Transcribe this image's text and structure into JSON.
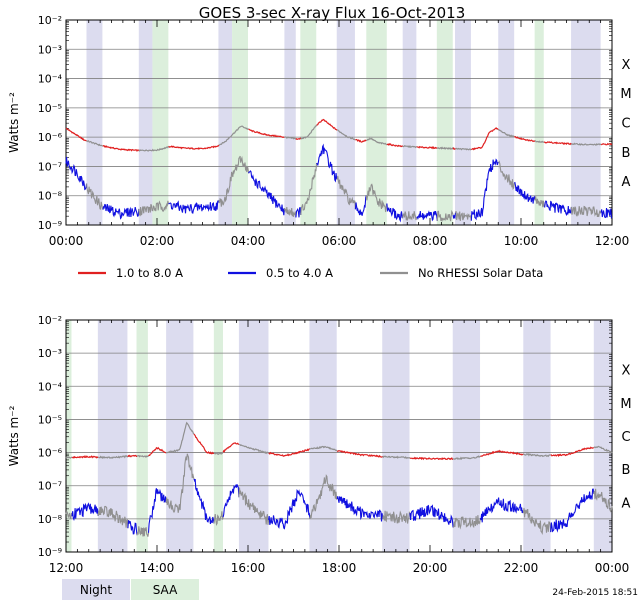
{
  "title": "GOES 3-sec X-ray Flux   16-Oct-2013",
  "footer_stamp": "24-Feb-2015 18:51",
  "legend_night": "Night",
  "legend_saa": "SAA",
  "colors": {
    "long_channel": "#e02020",
    "short_channel": "#1010e0",
    "no_rhessi": "#909090",
    "night": "#dcdcef",
    "saa": "#dcefdc",
    "grid": "#808080"
  },
  "chart_data": [
    {
      "type": "line",
      "panel": "top",
      "ylabel": "Watts m⁻²",
      "yscale": "log",
      "ylim": [
        1e-09,
        0.01
      ],
      "ytick_exponents": [
        -9,
        -8,
        -7,
        -6,
        -5,
        -4,
        -3,
        -2
      ],
      "xlim_hours": [
        0,
        12
      ],
      "xticks": [
        "00:00",
        "02:00",
        "04:00",
        "06:00",
        "08:00",
        "10:00",
        "12:00"
      ],
      "xtick_hours": [
        0,
        2,
        4,
        6,
        8,
        10,
        12
      ],
      "class_labels": [
        {
          "label": "A",
          "exp": -8
        },
        {
          "label": "B",
          "exp": -7
        },
        {
          "label": "C",
          "exp": -6
        },
        {
          "label": "M",
          "exp": -5
        },
        {
          "label": "X",
          "exp": -4
        }
      ],
      "night_intervals": [
        [
          0.45,
          0.8
        ],
        [
          1.6,
          1.9
        ],
        [
          3.35,
          3.65
        ],
        [
          4.8,
          5.05
        ],
        [
          5.95,
          6.35
        ],
        [
          7.4,
          7.7
        ],
        [
          8.55,
          8.9
        ],
        [
          9.5,
          9.85
        ],
        [
          11.1,
          11.75
        ]
      ],
      "saa_intervals": [
        [
          1.9,
          2.25
        ],
        [
          3.65,
          4.0
        ],
        [
          5.15,
          5.5
        ],
        [
          6.6,
          7.05
        ],
        [
          8.15,
          8.5
        ],
        [
          10.3,
          10.5
        ]
      ],
      "series": [
        {
          "name": "1.0 to 8.0 A",
          "channel": "long",
          "points": [
            [
              0.0,
              2e-06
            ],
            [
              0.4,
              8e-07
            ],
            [
              0.8,
              5e-07
            ],
            [
              1.2,
              3.8e-07
            ],
            [
              1.6,
              3.5e-07
            ],
            [
              2.0,
              3.6e-07
            ],
            [
              2.3,
              4.8e-07
            ],
            [
              2.6,
              4.2e-07
            ],
            [
              3.0,
              4e-07
            ],
            [
              3.3,
              4.8e-07
            ],
            [
              3.5,
              7e-07
            ],
            [
              3.65,
              1.2e-06
            ],
            [
              3.85,
              2.4e-06
            ],
            [
              4.1,
              1.6e-06
            ],
            [
              4.4,
              1.2e-06
            ],
            [
              4.8,
              1e-06
            ],
            [
              5.1,
              8.5e-07
            ],
            [
              5.3,
              1e-06
            ],
            [
              5.5,
              2.5e-06
            ],
            [
              5.65,
              4e-06
            ],
            [
              5.9,
              2e-06
            ],
            [
              6.2,
              1e-06
            ],
            [
              6.5,
              7e-07
            ],
            [
              6.7,
              9e-07
            ],
            [
              6.85,
              6.5e-07
            ],
            [
              7.3,
              5e-07
            ],
            [
              7.8,
              4.5e-07
            ],
            [
              8.3,
              4.2e-07
            ],
            [
              8.6,
              4e-07
            ],
            [
              8.9,
              3.8e-07
            ],
            [
              9.15,
              4.5e-07
            ],
            [
              9.3,
              1.4e-06
            ],
            [
              9.45,
              2e-06
            ],
            [
              9.7,
              1.2e-06
            ],
            [
              10.1,
              8e-07
            ],
            [
              10.5,
              6.8e-07
            ],
            [
              11.0,
              6e-07
            ],
            [
              11.5,
              5.5e-07
            ],
            [
              12.0,
              5.8e-07
            ]
          ]
        },
        {
          "name": "0.5 to 4.0 A",
          "channel": "short",
          "points": [
            [
              0.0,
              1.5e-07
            ],
            [
              0.25,
              6e-08
            ],
            [
              0.5,
              1.5e-08
            ],
            [
              0.8,
              4e-09
            ],
            [
              1.2,
              2.5e-09
            ],
            [
              1.6,
              3e-09
            ],
            [
              2.0,
              4e-09
            ],
            [
              2.3,
              5e-09
            ],
            [
              2.6,
              3.5e-09
            ],
            [
              3.0,
              4e-09
            ],
            [
              3.3,
              4.5e-09
            ],
            [
              3.5,
              8e-09
            ],
            [
              3.65,
              5e-08
            ],
            [
              3.85,
              1.8e-07
            ],
            [
              4.1,
              4e-08
            ],
            [
              4.4,
              1.2e-08
            ],
            [
              4.8,
              3e-09
            ],
            [
              5.1,
              2.5e-09
            ],
            [
              5.3,
              5e-09
            ],
            [
              5.5,
              1e-07
            ],
            [
              5.65,
              4.5e-07
            ],
            [
              5.9,
              5e-08
            ],
            [
              6.2,
              8e-09
            ],
            [
              6.5,
              2.5e-09
            ],
            [
              6.7,
              2e-08
            ],
            [
              6.85,
              6e-09
            ],
            [
              7.3,
              2e-09
            ],
            [
              7.8,
              2e-09
            ],
            [
              8.3,
              2e-09
            ],
            [
              8.6,
              2e-09
            ],
            [
              8.9,
              2e-09
            ],
            [
              9.15,
              3e-09
            ],
            [
              9.3,
              8e-08
            ],
            [
              9.45,
              1.5e-07
            ],
            [
              9.7,
              4e-08
            ],
            [
              10.1,
              1e-08
            ],
            [
              10.5,
              5e-09
            ],
            [
              11.0,
              3e-09
            ],
            [
              11.5,
              3e-09
            ],
            [
              12.0,
              2.5e-09
            ]
          ]
        }
      ]
    },
    {
      "type": "line",
      "panel": "bottom",
      "ylabel": "Watts m⁻²",
      "yscale": "log",
      "ylim": [
        1e-09,
        0.01
      ],
      "ytick_exponents": [
        -9,
        -8,
        -7,
        -6,
        -5,
        -4,
        -3,
        -2
      ],
      "xlim_hours": [
        12,
        24
      ],
      "xticks": [
        "12:00",
        "14:00",
        "16:00",
        "18:00",
        "20:00",
        "22:00",
        "00:00"
      ],
      "xtick_hours": [
        12,
        14,
        16,
        18,
        20,
        22,
        24
      ],
      "class_labels": [
        {
          "label": "A",
          "exp": -8
        },
        {
          "label": "B",
          "exp": -7
        },
        {
          "label": "C",
          "exp": -6
        },
        {
          "label": "M",
          "exp": -5
        },
        {
          "label": "X",
          "exp": -4
        }
      ],
      "night_intervals": [
        [
          12.7,
          13.35
        ],
        [
          14.2,
          14.8
        ],
        [
          15.8,
          16.45
        ],
        [
          17.35,
          17.95
        ],
        [
          18.95,
          19.55
        ],
        [
          20.5,
          21.1
        ],
        [
          22.05,
          22.65
        ],
        [
          23.6,
          24.0
        ]
      ],
      "saa_intervals": [
        [
          12.0,
          12.12
        ],
        [
          13.55,
          13.8
        ],
        [
          15.25,
          15.45
        ]
      ],
      "series": [
        {
          "name": "1.0 to 8.0 A",
          "channel": "long",
          "points": [
            [
              12.0,
              7e-07
            ],
            [
              12.5,
              7.5e-07
            ],
            [
              13.0,
              7e-07
            ],
            [
              13.5,
              8e-07
            ],
            [
              13.8,
              7.5e-07
            ],
            [
              14.0,
              1.4e-06
            ],
            [
              14.2,
              1e-06
            ],
            [
              14.5,
              1.2e-06
            ],
            [
              14.65,
              8e-06
            ],
            [
              14.85,
              3e-06
            ],
            [
              15.1,
              1e-06
            ],
            [
              15.4,
              9e-07
            ],
            [
              15.7,
              2e-06
            ],
            [
              16.0,
              1.4e-06
            ],
            [
              16.4,
              1e-06
            ],
            [
              16.8,
              8e-07
            ],
            [
              17.1,
              1e-06
            ],
            [
              17.4,
              1.3e-06
            ],
            [
              17.7,
              1.5e-06
            ],
            [
              18.0,
              1.1e-06
            ],
            [
              18.5,
              8.5e-07
            ],
            [
              19.0,
              7.5e-07
            ],
            [
              19.5,
              7e-07
            ],
            [
              20.0,
              6.5e-07
            ],
            [
              20.5,
              6.5e-07
            ],
            [
              21.0,
              7e-07
            ],
            [
              21.5,
              1.1e-06
            ],
            [
              22.0,
              9e-07
            ],
            [
              22.5,
              8e-07
            ],
            [
              23.0,
              8.5e-07
            ],
            [
              23.4,
              1.3e-06
            ],
            [
              23.7,
              1.5e-06
            ],
            [
              24.0,
              1e-06
            ]
          ]
        },
        {
          "name": "0.5 to 4.0 A",
          "channel": "short",
          "points": [
            [
              12.0,
              1.2e-08
            ],
            [
              12.5,
              2e-08
            ],
            [
              13.0,
              1.5e-08
            ],
            [
              13.5,
              5e-09
            ],
            [
              13.8,
              4e-09
            ],
            [
              14.0,
              8e-08
            ],
            [
              14.2,
              3e-08
            ],
            [
              14.5,
              2e-08
            ],
            [
              14.65,
              8e-07
            ],
            [
              14.85,
              1e-07
            ],
            [
              15.1,
              1e-08
            ],
            [
              15.4,
              1e-08
            ],
            [
              15.7,
              1e-07
            ],
            [
              16.0,
              3e-08
            ],
            [
              16.4,
              1e-08
            ],
            [
              16.8,
              7e-09
            ],
            [
              17.1,
              6e-08
            ],
            [
              17.4,
              1.2e-08
            ],
            [
              17.7,
              1.5e-07
            ],
            [
              18.0,
              4e-08
            ],
            [
              18.5,
              1.5e-08
            ],
            [
              19.0,
              1.2e-08
            ],
            [
              19.5,
              1e-08
            ],
            [
              20.0,
              2e-08
            ],
            [
              20.5,
              8e-09
            ],
            [
              21.0,
              8e-09
            ],
            [
              21.5,
              3e-08
            ],
            [
              22.0,
              2e-08
            ],
            [
              22.5,
              5e-09
            ],
            [
              23.0,
              8e-09
            ],
            [
              23.4,
              5e-08
            ],
            [
              23.7,
              6e-08
            ],
            [
              24.0,
              2e-08
            ]
          ]
        }
      ]
    }
  ],
  "legend": [
    {
      "label": "1.0 to 8.0 A",
      "color": "#e02020"
    },
    {
      "label": "0.5 to 4.0 A",
      "color": "#1010e0"
    },
    {
      "label": "No RHESSI Solar Data",
      "color": "#909090"
    }
  ]
}
